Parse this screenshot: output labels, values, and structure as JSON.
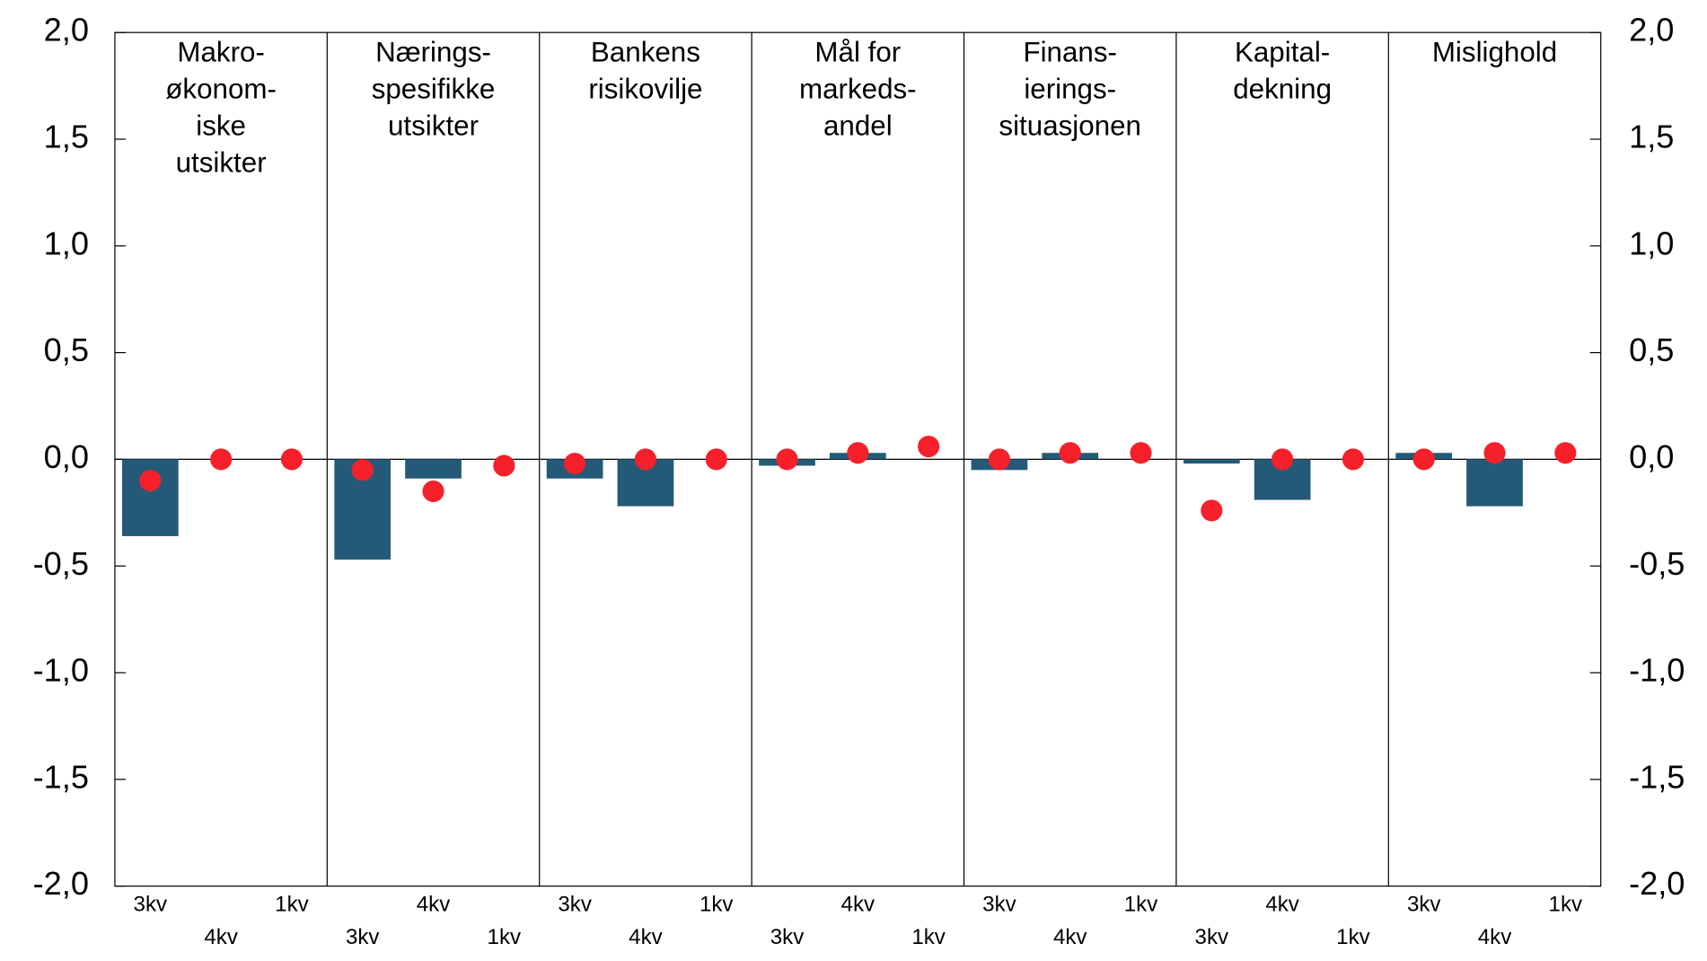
{
  "chart_data": {
    "type": "bar",
    "groups": [
      [
        "Makro-",
        "økonom-",
        "iske",
        "utsikter"
      ],
      [
        "Nærings-",
        "spesifikke",
        "utsikter"
      ],
      [
        "Bankens",
        "risikovilje"
      ],
      [
        "Mål for",
        "markeds-",
        "andel"
      ],
      [
        "Finans-",
        "ierings-",
        "situasjonen"
      ],
      [
        "Kapital-",
        "dekning"
      ],
      [
        "Mislighold"
      ]
    ],
    "categories": [
      "3kv",
      "4kv",
      "1kv",
      "3kv",
      "4kv",
      "1kv",
      "3kv",
      "4kv",
      "1kv",
      "3kv",
      "4kv",
      "1kv",
      "3kv",
      "4kv",
      "1kv",
      "3kv",
      "4kv",
      "1kv",
      "3kv",
      "4kv",
      "1kv"
    ],
    "series": [
      {
        "mark": "bar",
        "color": "#245a78",
        "values": [
          -0.36,
          0,
          null,
          -0.47,
          -0.09,
          null,
          -0.09,
          -0.22,
          null,
          -0.03,
          0.03,
          null,
          -0.05,
          0.03,
          null,
          -0.02,
          -0.19,
          null,
          0.03,
          -0.22,
          null
        ]
      },
      {
        "mark": "dot",
        "color": "#f5202a",
        "values": [
          -0.1,
          0,
          0,
          -0.05,
          -0.15,
          -0.03,
          -0.02,
          0,
          0,
          0,
          0.03,
          0.06,
          0,
          0.03,
          0.03,
          -0.24,
          0,
          0,
          0,
          0.03,
          0.03
        ]
      }
    ],
    "ylim": [
      -2,
      2
    ],
    "yticks": [
      {
        "value": -2,
        "label": "-2,0"
      },
      {
        "value": -1.5,
        "label": "-1,5"
      },
      {
        "value": -1,
        "label": "-1,0"
      },
      {
        "value": -0.5,
        "label": "-0,5"
      },
      {
        "value": 0,
        "label": "0,0"
      },
      {
        "value": 0.5,
        "label": "0,5"
      },
      {
        "value": 1,
        "label": "1,0"
      },
      {
        "value": 1.5,
        "label": "1,5"
      },
      {
        "value": 2,
        "label": "2,0"
      }
    ]
  }
}
